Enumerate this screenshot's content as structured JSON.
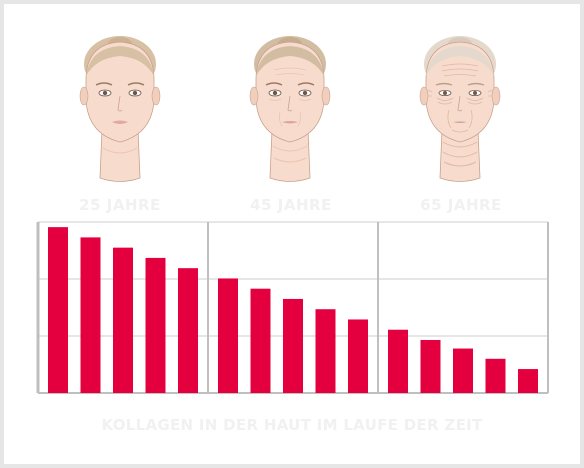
{
  "ages": [
    "25 JAHRE",
    "45 JAHRE",
    "65 JAHRE"
  ],
  "caption": "KOLLAGEN IN DER HAUT IM LAUFE DER ZEIT",
  "colors": {
    "bar": "#e4003f",
    "grid": "#cccccc",
    "axis": "#bfbfbf",
    "skin": "#f7dccd",
    "skin_shade": "#ecc3ae",
    "hair_young": "#d8c0a4",
    "hair_mid": "#d3bda2",
    "hair_old": "#e4d9cc"
  },
  "chart_data": {
    "type": "bar",
    "title": "",
    "xlabel": "",
    "ylabel": "",
    "ylim": [
      0,
      100
    ],
    "grid": true,
    "groups": [
      {
        "label": "25 JAHRE",
        "values": [
          97,
          91,
          85,
          79,
          73
        ]
      },
      {
        "label": "45 JAHRE",
        "values": [
          67,
          61,
          55,
          49,
          43
        ]
      },
      {
        "label": "65 JAHRE",
        "values": [
          37,
          31,
          26,
          20,
          14
        ]
      }
    ]
  }
}
